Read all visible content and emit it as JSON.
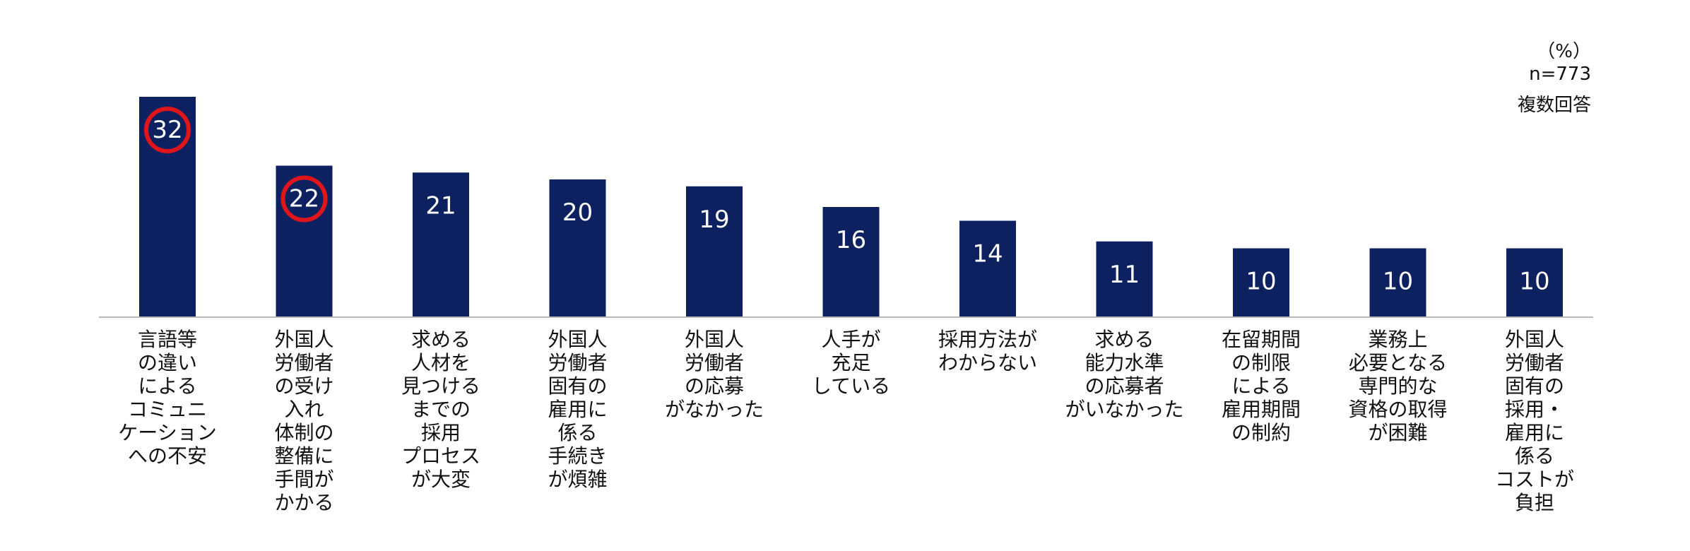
{
  "notes": {
    "unit": "（%）",
    "sample": "n=773",
    "answer_type": "複数回答"
  },
  "chart_data": {
    "type": "bar",
    "ylim": [
      0,
      35
    ],
    "grid": false,
    "bar_color": "#0d2160",
    "value_label_color": "#ffffff",
    "highlight_color": "#e0151c",
    "highlighted_indices": [
      0,
      1
    ],
    "categories": [
      "言語等の違いによるコミュニケーションへの不安",
      "外国人労働者の受け入れ体制の整備に手間がかかる",
      "求める人材を見つけるまでの採用プロセスが大変",
      "外国人労働者固有の雇用に係る手続きが煩雑",
      "外国人労働者の応募がなかった",
      "人手が充足している",
      "採用方法がわからない",
      "求める能力水準の応募者がいなかった",
      "在留期間の制限による雇用期間の制約",
      "業務上必要となる専門的な資格の取得が困難",
      "外国人労働者固有の採用・雇用に係るコストが負担"
    ],
    "category_lines": [
      [
        "言語等",
        "の違い",
        "による",
        "コミュニ",
        "ケーション",
        "への不安"
      ],
      [
        "外国人",
        "労働者",
        "の受け",
        "入れ",
        "体制の",
        "整備に",
        "手間が",
        "かかる"
      ],
      [
        "求める",
        "人材を",
        "見つける",
        "までの",
        "採用",
        "プロセス",
        "が大変"
      ],
      [
        "外国人",
        "労働者",
        "固有の",
        "雇用に",
        "係る",
        "手続き",
        "が煩雑"
      ],
      [
        "外国人",
        "労働者",
        "の応募",
        "がなかった"
      ],
      [
        "人手が",
        "充足",
        "している"
      ],
      [
        "採用方法が",
        "わからない"
      ],
      [
        "求める",
        "能力水準",
        "の応募者",
        "がいなかった"
      ],
      [
        "在留期間",
        "の制限",
        "による",
        "雇用期間",
        "の制約"
      ],
      [
        "業務上",
        "必要となる",
        "専門的な",
        "資格の取得",
        "が困難"
      ],
      [
        "外国人",
        "労働者",
        "固有の",
        "採用・",
        "雇用に",
        "係る",
        "コストが",
        "負担"
      ]
    ],
    "values": [
      32,
      22,
      21,
      20,
      19,
      16,
      14,
      11,
      10,
      10,
      10
    ]
  }
}
